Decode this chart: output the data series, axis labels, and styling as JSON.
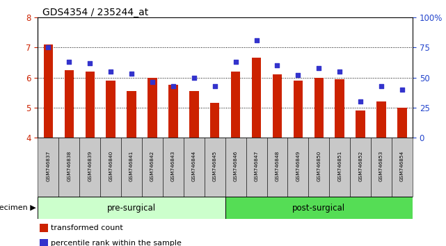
{
  "title": "GDS4354 / 235244_at",
  "samples": [
    "GSM746837",
    "GSM746838",
    "GSM746839",
    "GSM746840",
    "GSM746841",
    "GSM746842",
    "GSM746843",
    "GSM746844",
    "GSM746845",
    "GSM746846",
    "GSM746847",
    "GSM746848",
    "GSM746849",
    "GSM746850",
    "GSM746851",
    "GSM746852",
    "GSM746853",
    "GSM746854"
  ],
  "bar_values": [
    7.1,
    6.25,
    6.2,
    5.9,
    5.55,
    6.0,
    5.75,
    5.55,
    5.15,
    6.2,
    6.65,
    6.1,
    5.9,
    6.0,
    5.95,
    4.9,
    5.2,
    5.0
  ],
  "dot_values_pct": [
    75,
    63,
    62,
    55,
    53,
    46,
    43,
    50,
    43,
    63,
    81,
    60,
    52,
    58,
    55,
    30,
    43,
    40
  ],
  "ylim_left": [
    4,
    8
  ],
  "ylim_right": [
    0,
    100
  ],
  "yticks_left": [
    4,
    5,
    6,
    7,
    8
  ],
  "yticks_right": [
    0,
    25,
    50,
    75,
    100
  ],
  "bar_color": "#cc2200",
  "dot_color": "#3333cc",
  "pre_surgical_count": 9,
  "group_labels": [
    "pre-surgical",
    "post-surgical"
  ],
  "group_color_pre": "#ccffcc",
  "group_color_post": "#55dd55",
  "specimen_label": "specimen",
  "legend_entries": [
    "transformed count",
    "percentile rank within the sample"
  ],
  "tick_label_color_left": "#cc2200",
  "tick_label_color_right": "#2244cc",
  "title_fontsize": 10,
  "bar_width": 0.45,
  "cell_bg": "#c8c8c8"
}
